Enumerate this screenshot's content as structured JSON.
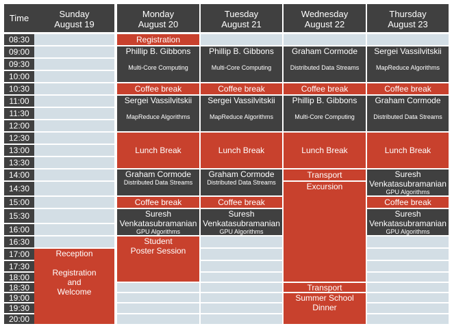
{
  "header": {
    "time_label": "Time",
    "days": [
      {
        "name": "Sunday",
        "date": "August 19"
      },
      {
        "name": "Monday",
        "date": "August 20"
      },
      {
        "name": "Tuesday",
        "date": "August 21"
      },
      {
        "name": "Wednesday",
        "date": "August 22"
      },
      {
        "name": "Thursday",
        "date": "August 23"
      }
    ]
  },
  "times": [
    "08:30",
    "09:00",
    "09:30",
    "10:00",
    "10:30",
    "11:00",
    "11:30",
    "12:00",
    "12:30",
    "13:00",
    "13:30",
    "14:00",
    "14:30",
    "15:00",
    "15:30",
    "16:00",
    "16:30",
    "17:00",
    "17:30",
    "18:00",
    "18:30",
    "19:00",
    "19:30",
    "20:00"
  ],
  "events": {
    "sunday": {
      "reception": {
        "title": "Reception\n\nRegistration\nand\nWelcome"
      }
    },
    "monday": {
      "registration": {
        "title": "Registration"
      },
      "s1": {
        "title": "Phillip B. Gibbons",
        "subtitle": "Multi-Core Computing"
      },
      "coffee1": {
        "title": "Coffee break"
      },
      "s2": {
        "title": "Sergei Vassilvitskii",
        "subtitle": "MapReduce Algorithms"
      },
      "lunch": {
        "title": "Lunch Break"
      },
      "s3": {
        "title": "Graham Cormode",
        "subtitle": "Distributed Data Streams"
      },
      "coffee2": {
        "title": "Coffee break"
      },
      "s4": {
        "title": "Suresh\nVenkatasubramanian",
        "subtitle": "GPU Algorithms"
      },
      "poster": {
        "title": "Student\nPoster Session"
      }
    },
    "tuesday": {
      "s1": {
        "title": "Phillip B. Gibbons",
        "subtitle": "Multi-Core Computing"
      },
      "coffee1": {
        "title": "Coffee break"
      },
      "s2": {
        "title": "Sergei Vassilvitskii",
        "subtitle": "MapReduce Algorithms"
      },
      "lunch": {
        "title": "Lunch Break"
      },
      "s3": {
        "title": "Graham Cormode",
        "subtitle": "Distributed Data Streams"
      },
      "coffee2": {
        "title": "Coffee break"
      },
      "s4": {
        "title": "Suresh\nVenkatasubramanian",
        "subtitle": "GPU Algorithms"
      }
    },
    "wednesday": {
      "s1": {
        "title": "Graham Cormode",
        "subtitle": "Distributed Data Streams"
      },
      "coffee1": {
        "title": "Coffee break"
      },
      "s2": {
        "title": "Phillip B. Gibbons",
        "subtitle": "Multi-Core Computing"
      },
      "lunch": {
        "title": "Lunch Break"
      },
      "transport1": {
        "title": "Transport"
      },
      "excursion": {
        "title": "Excursion"
      },
      "transport2": {
        "title": "Transport"
      },
      "dinner": {
        "title": "Summer School\nDinner"
      }
    },
    "thursday": {
      "s1": {
        "title": "Sergei Vassilvitskii",
        "subtitle": "MapReduce Algorithms"
      },
      "coffee1": {
        "title": "Coffee break"
      },
      "s2": {
        "title": "Graham Cormode",
        "subtitle": "Distributed Data Streams"
      },
      "lunch": {
        "title": "Lunch Break"
      },
      "s3": {
        "title": "Suresh\nVenkatasubramanian",
        "subtitle": "GPU Algorithms"
      },
      "coffee2": {
        "title": "Coffee break"
      },
      "s4": {
        "title": "Suresh\nVenkatasubramanian",
        "subtitle": "GPU Algorithms"
      }
    }
  },
  "colors": {
    "header": "#404040",
    "session": "#404040",
    "break": "#c8412d",
    "empty_slot": "#d3dee5"
  }
}
